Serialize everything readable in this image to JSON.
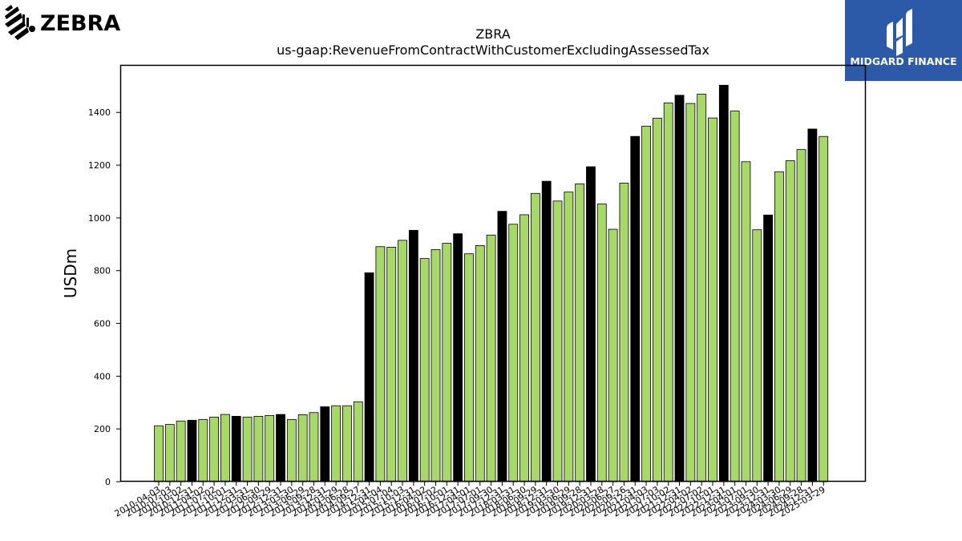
{
  "logos": {
    "left_text": "ZEBRA",
    "right_text": "MIDGARD FINANCE",
    "right_bg_color": "#2c5aa8"
  },
  "colors": {
    "regular_bar": "#a8d86a",
    "highlight_bar": "#000000",
    "bar_edge": "#000000"
  },
  "chart_data": {
    "type": "bar",
    "title": "ZBRA",
    "subtitle": "us-gaap:RevenueFromContractWithCustomerExcludingAssessedTax",
    "xlabel": "",
    "ylabel": "USDm",
    "ylim": [
      0,
      1580
    ],
    "yticks": [
      0,
      200,
      400,
      600,
      800,
      1000,
      1200,
      1400
    ],
    "grid": false,
    "categories": [
      "2010-04-03",
      "2010-07-03",
      "2010-10-02",
      "2010-12-31",
      "2011-04-02",
      "2011-07-02",
      "2011-10-01",
      "2011-12-31",
      "2012-03-31",
      "2012-06-30",
      "2012-09-29",
      "2012-12-31",
      "2013-03-30",
      "2013-06-29",
      "2013-09-28",
      "2013-12-31",
      "2014-03-29",
      "2014-06-28",
      "2014-09-27",
      "2014-12-31",
      "2015-04-04",
      "2015-07-04",
      "2015-10-03",
      "2015-12-31",
      "2016-04-02",
      "2016-07-02",
      "2016-10-01",
      "2016-12-31",
      "2017-04-01",
      "2017-07-01",
      "2017-09-30",
      "2017-12-31",
      "2018-03-31",
      "2018-06-30",
      "2018-09-29",
      "2018-12-31",
      "2019-03-30",
      "2019-06-29",
      "2019-09-28",
      "2019-12-31",
      "2020-03-28",
      "2020-06-27",
      "2020-09-26",
      "2020-12-31",
      "2021-04-03",
      "2021-07-03",
      "2021-10-02",
      "2021-12-31",
      "2022-04-02",
      "2022-07-02",
      "2022-10-01",
      "2022-12-31",
      "2023-04-01",
      "2023-07-01",
      "2023-09-30",
      "2023-12-31",
      "2024-03-30",
      "2024-06-29",
      "2024-09-28",
      "2024-12-31",
      "2025-03-29"
    ],
    "values": [
      212,
      217,
      230,
      233,
      236,
      245,
      255,
      248,
      245,
      248,
      251,
      255,
      236,
      254,
      262,
      284,
      288,
      288,
      303,
      792,
      891,
      889,
      915,
      953,
      846,
      880,
      904,
      940,
      864,
      895,
      935,
      1025,
      976,
      1012,
      1093,
      1139,
      1064,
      1098,
      1129,
      1194,
      1053,
      957,
      1132,
      1309,
      1348,
      1378,
      1436,
      1465,
      1434,
      1469,
      1379,
      1503,
      1405,
      1213,
      955,
      1011,
      1175,
      1217,
      1259,
      1337,
      1309
    ],
    "highlight_indices": [
      3,
      7,
      11,
      15,
      19,
      23,
      27,
      31,
      35,
      39,
      43,
      47,
      51,
      55,
      59
    ]
  }
}
